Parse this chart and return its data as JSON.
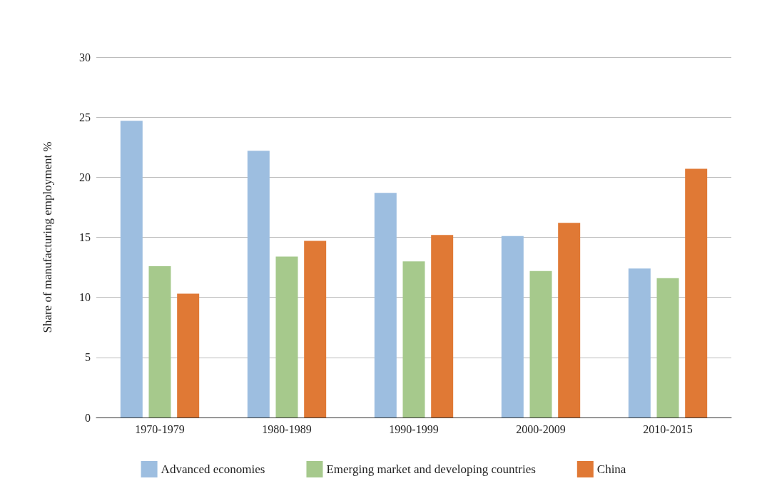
{
  "chart_data": {
    "type": "bar",
    "ylabel": "Share of manufacturing employment %",
    "categories": [
      "1970-1979",
      "1980-1989",
      "1990-1999",
      "2000-2009",
      "2010-2015"
    ],
    "series": [
      {
        "name": "Advanced economies",
        "color": "#9dbee0",
        "values": [
          24.7,
          22.2,
          18.7,
          15.1,
          12.4
        ]
      },
      {
        "name": "Emerging market and developing countries",
        "color": "#a6c98c",
        "values": [
          12.6,
          13.4,
          13.0,
          12.2,
          11.6
        ]
      },
      {
        "name": "China",
        "color": "#e07935",
        "values": [
          10.3,
          14.7,
          15.2,
          16.2,
          20.7
        ]
      }
    ],
    "ylim": [
      0,
      30
    ],
    "yticks": [
      0,
      5,
      10,
      15,
      20,
      25,
      30
    ],
    "grid": "y",
    "legend": "bottom"
  }
}
